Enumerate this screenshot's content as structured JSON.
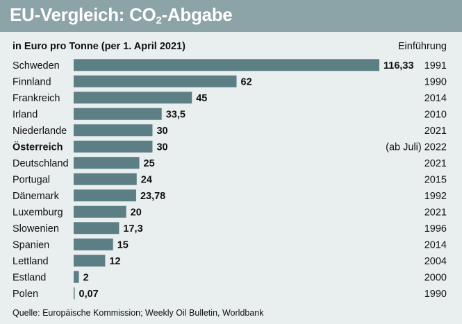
{
  "header": {
    "title_prefix": "EU-Vergleich: CO",
    "title_sub": "2",
    "title_suffix": "-Abgabe"
  },
  "subtitle": "in Euro pro Tonne (per 1. April 2021)",
  "column_header": "Einführung",
  "source": "Quelle: Europäische Kommission; Weekly Oil Bulletin, Worldbank",
  "colors": {
    "bar": "#5c7f85",
    "header": "#8ca3a8",
    "background": "#e9eeee"
  },
  "chart_data": {
    "type": "bar",
    "orientation": "horizontal",
    "categories": [
      "Schweden",
      "Finnland",
      "Frankreich",
      "Irland",
      "Niederlande",
      "Österreich",
      "Deutschland",
      "Portugal",
      "Dänemark",
      "Luxemburg",
      "Slowenien",
      "Spanien",
      "Lettland",
      "Estland",
      "Polen"
    ],
    "values": [
      116.33,
      62,
      45,
      33.5,
      30,
      30,
      25,
      24,
      23.78,
      20,
      17.3,
      15,
      12,
      2,
      0.07
    ],
    "value_labels": [
      "116,33",
      "62",
      "45",
      "33,5",
      "30",
      "30",
      "25",
      "24",
      "23,78",
      "20",
      "17,3",
      "15",
      "12",
      "2",
      "0,07"
    ],
    "introduction": [
      "1991",
      "1990",
      "2014",
      "2010",
      "2021",
      "(ab Juli) 2022",
      "2021",
      "2015",
      "1992",
      "2021",
      "1996",
      "2014",
      "2004",
      "2000",
      "1990"
    ],
    "highlighted": [
      "Österreich"
    ],
    "title": "EU-Vergleich: CO2-Abgabe"
  }
}
